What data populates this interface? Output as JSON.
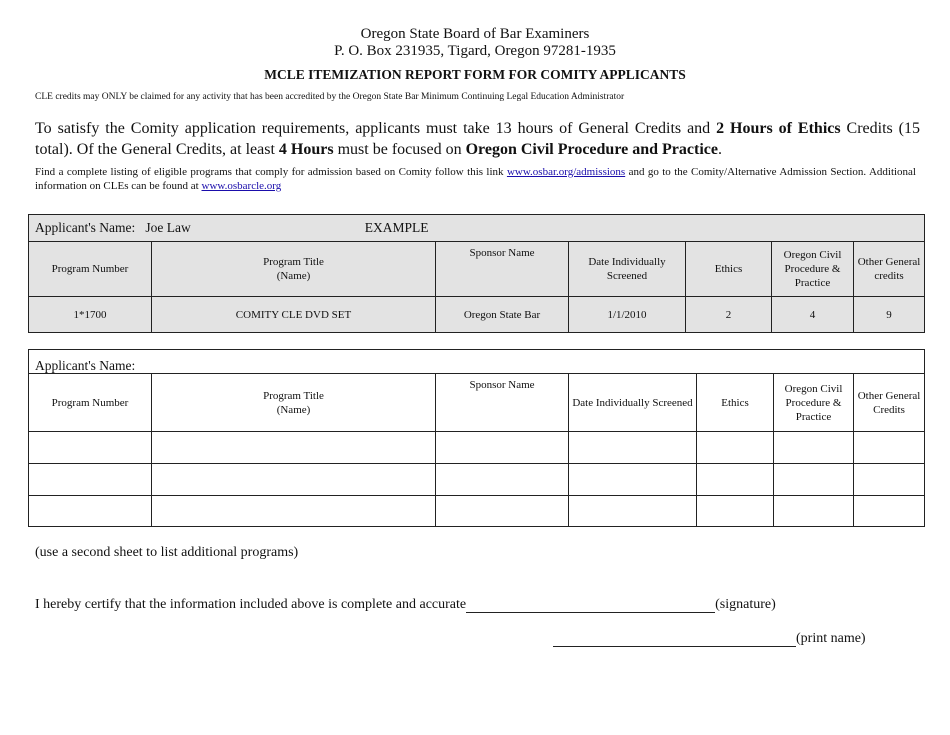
{
  "header": {
    "org": "Oregon State Board of Bar Examiners",
    "address": "P. O. Box 231935, Tigard, Oregon 97281-1935",
    "title": "MCLE ITEMIZATION REPORT FORM FOR COMITY APPLICANTS",
    "notice": "CLE credits may ONLY be claimed for any activity that has been accredited by the Oregon State Bar Minimum Continuing Legal Education Administrator"
  },
  "requirements": {
    "p1": "To satisfy the Comity application requirements, applicants must take 13 hours of General Credits and ",
    "b1": "2 Hours of Ethics",
    "p2": " Credits (15 total). Of the General Credits, at least ",
    "b2": "4 Hours",
    "p3": " must be focused on ",
    "b3": "Oregon Civil Procedure and Practice",
    "p4": "."
  },
  "info": {
    "t1": "Find a complete listing of eligible programs that comply for admission based on Comity follow this link ",
    "link1": "www.osbar.org/admissions",
    "t2": " and go to the Comity/Alternative Admission Section. Additional information on CLEs can be found at ",
    "link2": "www.osbarcle.org"
  },
  "example_table": {
    "applicant_label": "Applicant's Name:",
    "applicant_value": "Joe Law",
    "example_label": "EXAMPLE",
    "headers": [
      "Program Number",
      "Program Title\n(Name)",
      "Sponsor Name",
      "Date Individually Screened",
      "Ethics",
      "Oregon Civil Procedure & Practice",
      "Other General credits"
    ],
    "row": [
      "1*1700",
      "COMITY CLE DVD SET",
      "Oregon State Bar",
      "1/1/2010",
      "2",
      "4",
      "9"
    ]
  },
  "blank_table": {
    "applicant_label": "Applicant's Name:",
    "headers": [
      "Program Number",
      "Program Title\n(Name)",
      "Sponsor Name",
      "Date Individually Screened",
      "Ethics",
      "Oregon Civil Procedure & Practice",
      "Other General Credits"
    ]
  },
  "footer": {
    "note": "(use a second sheet to list additional programs)",
    "certify": "I hereby certify that the information included above is complete and accurate",
    "signature": "(signature)",
    "print_name": "(print name)"
  }
}
